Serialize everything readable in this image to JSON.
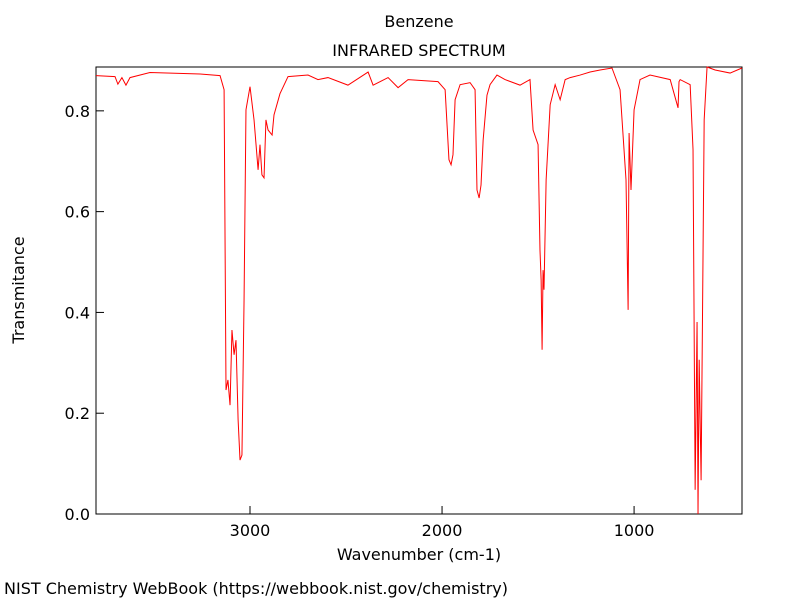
{
  "chart_data": {
    "type": "line",
    "title": "Benzene",
    "subtitle": "INFRARED SPECTRUM",
    "x_label": "Wavenumber (cm-1)",
    "y_label": "Transmitance",
    "footer": "NIST Chemistry WebBook (https://webbook.nist.gov/chemistry)",
    "color": "#ff0000",
    "xlim": [
      3802,
      438
    ],
    "ylim": [
      0,
      0.887
    ],
    "xticks": [
      3000,
      2000,
      1000
    ],
    "yticks": [
      {
        "value": 0,
        "label": "0.0"
      },
      0.2,
      0.4,
      0.6,
      0.8
    ],
    "x": [
      3802,
      3703,
      3688,
      3667,
      3646,
      3625,
      3521,
      3260,
      3156,
      3135,
      3125,
      3115,
      3104,
      3094,
      3083,
      3073,
      3062,
      3052,
      3042,
      3031,
      3021,
      3000,
      2979,
      2958,
      2948,
      2938,
      2927,
      2917,
      2906,
      2885,
      2875,
      2844,
      2802,
      2698,
      2646,
      2594,
      2490,
      2385,
      2359,
      2281,
      2229,
      2177,
      2021,
      1984,
      1964,
      1953,
      1943,
      1932,
      1906,
      1854,
      1828,
      1818,
      1807,
      1797,
      1786,
      1766,
      1750,
      1714,
      1672,
      1594,
      1542,
      1526,
      1500,
      1490,
      1484,
      1479,
      1474,
      1469,
      1458,
      1437,
      1411,
      1385,
      1359,
      1333,
      1281,
      1229,
      1177,
      1115,
      1073,
      1042,
      1031,
      1026,
      1016,
      1000,
      969,
      917,
      812,
      771,
      766,
      760,
      708,
      693,
      682,
      672,
      667,
      661,
      651,
      635,
      620,
      578,
      500,
      438
    ],
    "values": [
      0.87,
      0.868,
      0.853,
      0.866,
      0.851,
      0.866,
      0.876,
      0.873,
      0.87,
      0.842,
      0.246,
      0.266,
      0.216,
      0.365,
      0.316,
      0.345,
      0.187,
      0.107,
      0.117,
      0.425,
      0.802,
      0.848,
      0.782,
      0.683,
      0.733,
      0.673,
      0.667,
      0.782,
      0.762,
      0.752,
      0.792,
      0.834,
      0.868,
      0.871,
      0.862,
      0.866,
      0.851,
      0.877,
      0.851,
      0.866,
      0.846,
      0.862,
      0.858,
      0.842,
      0.703,
      0.693,
      0.713,
      0.822,
      0.852,
      0.856,
      0.842,
      0.643,
      0.627,
      0.653,
      0.742,
      0.831,
      0.852,
      0.871,
      0.862,
      0.851,
      0.862,
      0.762,
      0.733,
      0.524,
      0.464,
      0.326,
      0.484,
      0.445,
      0.663,
      0.812,
      0.852,
      0.822,
      0.862,
      0.866,
      0.871,
      0.877,
      0.881,
      0.885,
      0.842,
      0.663,
      0.405,
      0.756,
      0.643,
      0.802,
      0.862,
      0.871,
      0.862,
      0.806,
      0.858,
      0.862,
      0.852,
      0.723,
      0.048,
      0.381,
      0.0,
      0.306,
      0.067,
      0.782,
      0.887,
      0.881,
      0.875,
      0.885
    ]
  }
}
